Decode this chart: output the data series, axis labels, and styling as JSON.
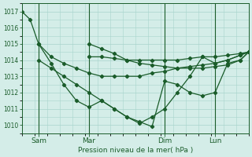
{
  "bg_color": "#d4ede8",
  "grid_color": "#a8d4cc",
  "line_color": "#1a5c2a",
  "xlabel": "Pression niveau de la mer( hPa )",
  "ylim": [
    1009.5,
    1017.5
  ],
  "yticks": [
    1010,
    1011,
    1012,
    1013,
    1014,
    1015,
    1016,
    1017
  ],
  "xtick_labels": [
    "Sam",
    "Mar",
    "Dim",
    "Lun"
  ],
  "xtick_positions": [
    8,
    32,
    68,
    92
  ],
  "xlim": [
    0,
    108
  ],
  "series1_x": [
    0,
    4,
    8,
    14,
    20,
    26,
    32,
    38,
    44,
    50,
    56,
    62,
    68,
    74,
    80,
    86,
    92,
    98,
    104,
    108
  ],
  "series1_y": [
    1017.0,
    1016.5,
    1015.0,
    1014.2,
    1013.8,
    1013.5,
    1013.2,
    1013.0,
    1013.0,
    1013.0,
    1013.0,
    1013.2,
    1013.3,
    1013.5,
    1013.6,
    1013.7,
    1013.8,
    1014.0,
    1014.3,
    1014.5
  ],
  "series2_x": [
    8,
    14,
    20,
    26,
    32,
    38,
    44,
    50,
    56,
    62,
    68,
    74,
    80,
    86,
    92,
    98,
    104,
    108
  ],
  "series2_y": [
    1015.0,
    1013.8,
    1012.5,
    1011.5,
    1011.1,
    1011.5,
    1011.0,
    1010.5,
    1010.1,
    1010.5,
    1011.0,
    1012.0,
    1013.0,
    1014.2,
    1013.8,
    1014.0,
    1014.3,
    1014.5
  ],
  "series3_x": [
    8,
    14,
    20,
    26,
    32,
    38,
    44,
    50,
    56,
    62,
    68,
    74,
    80,
    86,
    92,
    98,
    104,
    108
  ],
  "series3_y": [
    1014.0,
    1013.5,
    1013.0,
    1012.5,
    1012.0,
    1011.5,
    1011.0,
    1010.5,
    1010.2,
    1009.9,
    1012.7,
    1012.5,
    1012.0,
    1011.8,
    1012.0,
    1013.8,
    1014.0,
    1014.5
  ],
  "series4_x": [
    32,
    38,
    44,
    50,
    56,
    62,
    68,
    74,
    80,
    86,
    92,
    98,
    104,
    108
  ],
  "series4_y": [
    1014.2,
    1014.2,
    1014.1,
    1014.0,
    1014.0,
    1014.0,
    1014.0,
    1014.0,
    1014.1,
    1014.2,
    1014.2,
    1014.3,
    1014.4,
    1014.5
  ],
  "series5_x": [
    32,
    38,
    44,
    50,
    56,
    62,
    68,
    74,
    80,
    86,
    92,
    98,
    104,
    108
  ],
  "series5_y": [
    1015.0,
    1014.7,
    1014.4,
    1014.0,
    1013.8,
    1013.7,
    1013.6,
    1013.5,
    1013.5,
    1013.5,
    1013.6,
    1013.7,
    1014.0,
    1014.5
  ]
}
